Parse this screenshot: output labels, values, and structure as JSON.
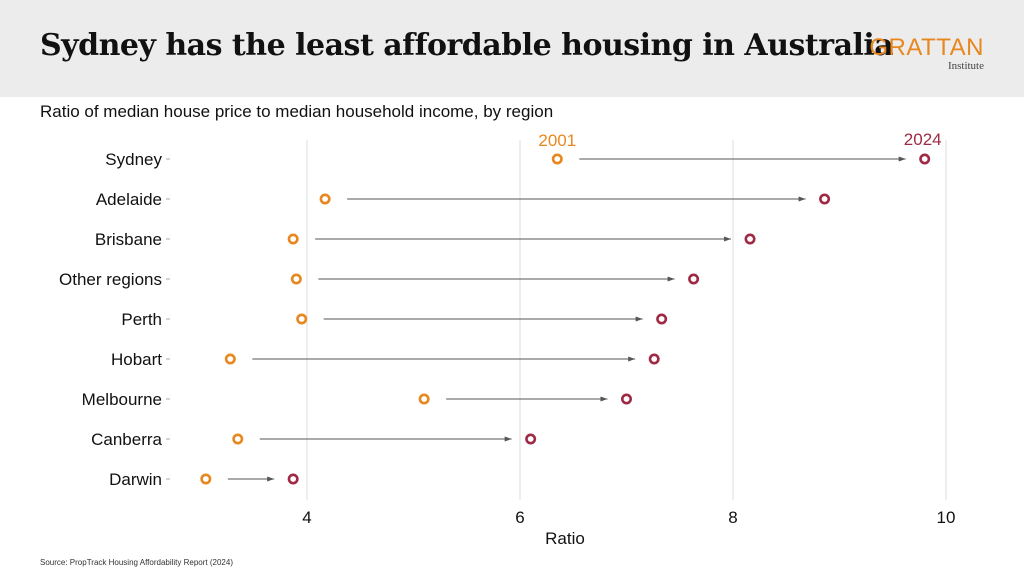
{
  "header": {
    "title": "Sydney has the least affordable housing in Australia",
    "logo_main": "GRATTAN",
    "logo_sub": "Institute"
  },
  "subtitle": "Ratio of median house price to median household income, by region",
  "source": "Source: PropTrack Housing Affordability Report (2024)",
  "colors": {
    "y2001": "#e8871e",
    "y2024": "#9e2a45",
    "arrow": "#555555",
    "grid": "#dddddd",
    "logo": "#e8871e"
  },
  "chart_data": {
    "type": "dumbbell",
    "xlabel": "Ratio",
    "ylabel": "",
    "xlim": [
      2.7,
      10.2
    ],
    "xticks": [
      4,
      6,
      8,
      10
    ],
    "xtick_labels": [
      "4",
      "6",
      "8",
      "10"
    ],
    "grid": "vertical",
    "legend": "annotated inline above the Sydney row",
    "categories": [
      "Sydney",
      "Adelaide",
      "Brisbane",
      "Other regions",
      "Perth",
      "Hobart",
      "Melbourne",
      "Canberra",
      "Darwin"
    ],
    "series": [
      {
        "name": "2001",
        "values": [
          6.35,
          4.17,
          3.87,
          3.9,
          3.95,
          3.28,
          5.1,
          3.35,
          3.05
        ]
      },
      {
        "name": "2024",
        "values": [
          9.8,
          8.86,
          8.16,
          7.63,
          7.33,
          7.26,
          7.0,
          6.1,
          3.87
        ]
      }
    ]
  }
}
